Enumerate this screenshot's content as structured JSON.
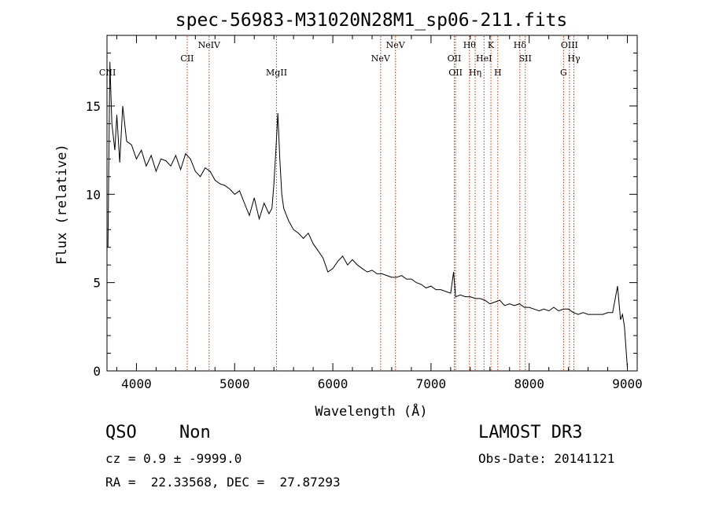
{
  "chart_data": {
    "type": "line",
    "title": "spec-56983-M31020N28M1_sp06-211.fits",
    "xlabel": "Wavelength (Å)",
    "ylabel": "Flux (relative)",
    "xlim": [
      3700,
      9100
    ],
    "ylim": [
      0,
      19
    ],
    "xticks": [
      4000,
      5000,
      6000,
      7000,
      8000,
      9000
    ],
    "yticks": [
      0,
      5,
      10,
      15
    ],
    "grid": false,
    "series": [
      {
        "x": [
          3710,
          3730,
          3750,
          3780,
          3800,
          3830,
          3860,
          3900,
          3950,
          4000,
          4050,
          4100,
          4150,
          4200,
          4250,
          4300,
          4350,
          4400,
          4450,
          4500,
          4550,
          4600,
          4650,
          4700,
          4750,
          4800,
          4850,
          4900,
          4950,
          5000,
          5050,
          5100,
          5150,
          5200,
          5250,
          5300,
          5350,
          5380,
          5400,
          5420,
          5440,
          5460,
          5480,
          5500,
          5550,
          5600,
          5650,
          5700,
          5750,
          5800,
          5850,
          5900,
          5950,
          6000,
          6050,
          6100,
          6150,
          6200,
          6250,
          6300,
          6350,
          6400,
          6450,
          6500,
          6550,
          6600,
          6650,
          6700,
          6750,
          6800,
          6850,
          6900,
          6950,
          7000,
          7050,
          7100,
          7150,
          7200,
          7230,
          7250,
          7300,
          7350,
          7400,
          7450,
          7500,
          7550,
          7600,
          7650,
          7700,
          7750,
          7800,
          7850,
          7900,
          7950,
          8000,
          8050,
          8100,
          8150,
          8200,
          8250,
          8300,
          8350,
          8400,
          8450,
          8500,
          8550,
          8600,
          8650,
          8700,
          8750,
          8800,
          8850,
          8900,
          8930,
          8950,
          8970,
          9000
        ],
        "values": [
          7.0,
          17.5,
          14.0,
          12.5,
          14.5,
          11.8,
          15.0,
          13.0,
          12.8,
          12.0,
          12.5,
          11.6,
          12.2,
          11.3,
          12.0,
          11.9,
          11.6,
          12.2,
          11.4,
          12.3,
          12.0,
          11.3,
          11.0,
          11.5,
          11.3,
          10.8,
          10.6,
          10.5,
          10.3,
          10.0,
          10.2,
          9.5,
          8.8,
          9.8,
          8.6,
          9.5,
          8.9,
          9.2,
          10.6,
          12.5,
          14.6,
          12.0,
          10.0,
          9.2,
          8.5,
          8.0,
          7.8,
          7.5,
          7.8,
          7.2,
          6.8,
          6.4,
          5.6,
          5.8,
          6.2,
          6.5,
          6.0,
          6.3,
          6.0,
          5.8,
          5.6,
          5.7,
          5.5,
          5.5,
          5.4,
          5.3,
          5.3,
          5.4,
          5.2,
          5.2,
          5.0,
          4.9,
          4.7,
          4.8,
          4.6,
          4.6,
          4.5,
          4.4,
          5.6,
          4.2,
          4.3,
          4.2,
          4.2,
          4.1,
          4.1,
          4.0,
          3.8,
          3.9,
          4.0,
          3.7,
          3.8,
          3.7,
          3.8,
          3.6,
          3.6,
          3.5,
          3.4,
          3.5,
          3.4,
          3.6,
          3.4,
          3.5,
          3.5,
          3.3,
          3.2,
          3.3,
          3.2,
          3.2,
          3.2,
          3.2,
          3.3,
          3.3,
          4.8,
          2.9,
          3.2,
          2.5,
          0.2
        ]
      }
    ],
    "lines": [
      {
        "label": "CIII",
        "x": 3705,
        "row": 3
      },
      {
        "label": "CII",
        "x": 4517,
        "row": 2
      },
      {
        "label": "NeIV",
        "x": 4740,
        "row": 1
      },
      {
        "label": "MgII",
        "x": 5427,
        "row": 3
      },
      {
        "label": "NeV",
        "x": 6487,
        "row": 2
      },
      {
        "label": "NeV",
        "x": 6638,
        "row": 1
      },
      {
        "label": "OII",
        "x": 7237,
        "row": 2
      },
      {
        "label": "OII",
        "x": 7250,
        "row": 3
      },
      {
        "label": "Hθ",
        "x": 7392,
        "row": 1
      },
      {
        "label": "Hη",
        "x": 7450,
        "row": 3
      },
      {
        "label": "HeI",
        "x": 7540,
        "row": 2
      },
      {
        "label": "K",
        "x": 7610,
        "row": 1
      },
      {
        "label": "H",
        "x": 7680,
        "row": 3
      },
      {
        "label": "Hδ",
        "x": 7905,
        "row": 1
      },
      {
        "label": "SII",
        "x": 7960,
        "row": 2
      },
      {
        "label": "G",
        "x": 8350,
        "row": 3
      },
      {
        "label": "OIII",
        "x": 8410,
        "row": 1
      },
      {
        "label": "Hγ",
        "x": 8455,
        "row": 2
      }
    ]
  },
  "info": {
    "class": "QSO",
    "subclass": "Non",
    "survey": "LAMOST DR3",
    "cz": "cz = 0.9 ± -9999.0",
    "obsdate": "Obs-Date: 20141121",
    "radec": "RA =  22.33568, DEC =  27.87293"
  },
  "colors": {
    "spectrum": "#000000",
    "line_marker": "#cc3300"
  }
}
